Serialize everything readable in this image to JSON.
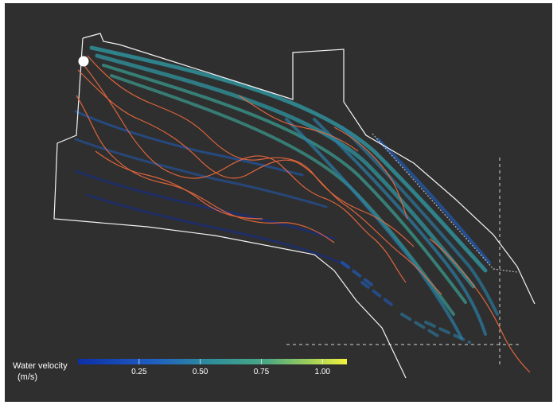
{
  "figure": {
    "legend": {
      "title_line1": "Water velocity",
      "title_line2": "(m/s)",
      "range": [
        0,
        1.1
      ],
      "ticks": [
        {
          "value": 0.25,
          "label": "0.25"
        },
        {
          "value": 0.5,
          "label": "0.50"
        },
        {
          "value": 0.75,
          "label": "0.75"
        },
        {
          "value": 1.0,
          "label": "1.00"
        }
      ],
      "colors": [
        "#0d2fa8",
        "#1f5fc2",
        "#2f8f9a",
        "#4aa884",
        "#9fcf5a",
        "#f2f23c"
      ]
    },
    "colors": {
      "background": "#2f2f2f",
      "boundary": "#ffffff",
      "track": "#f26a3d",
      "fish_start": "#ffffff"
    }
  }
}
